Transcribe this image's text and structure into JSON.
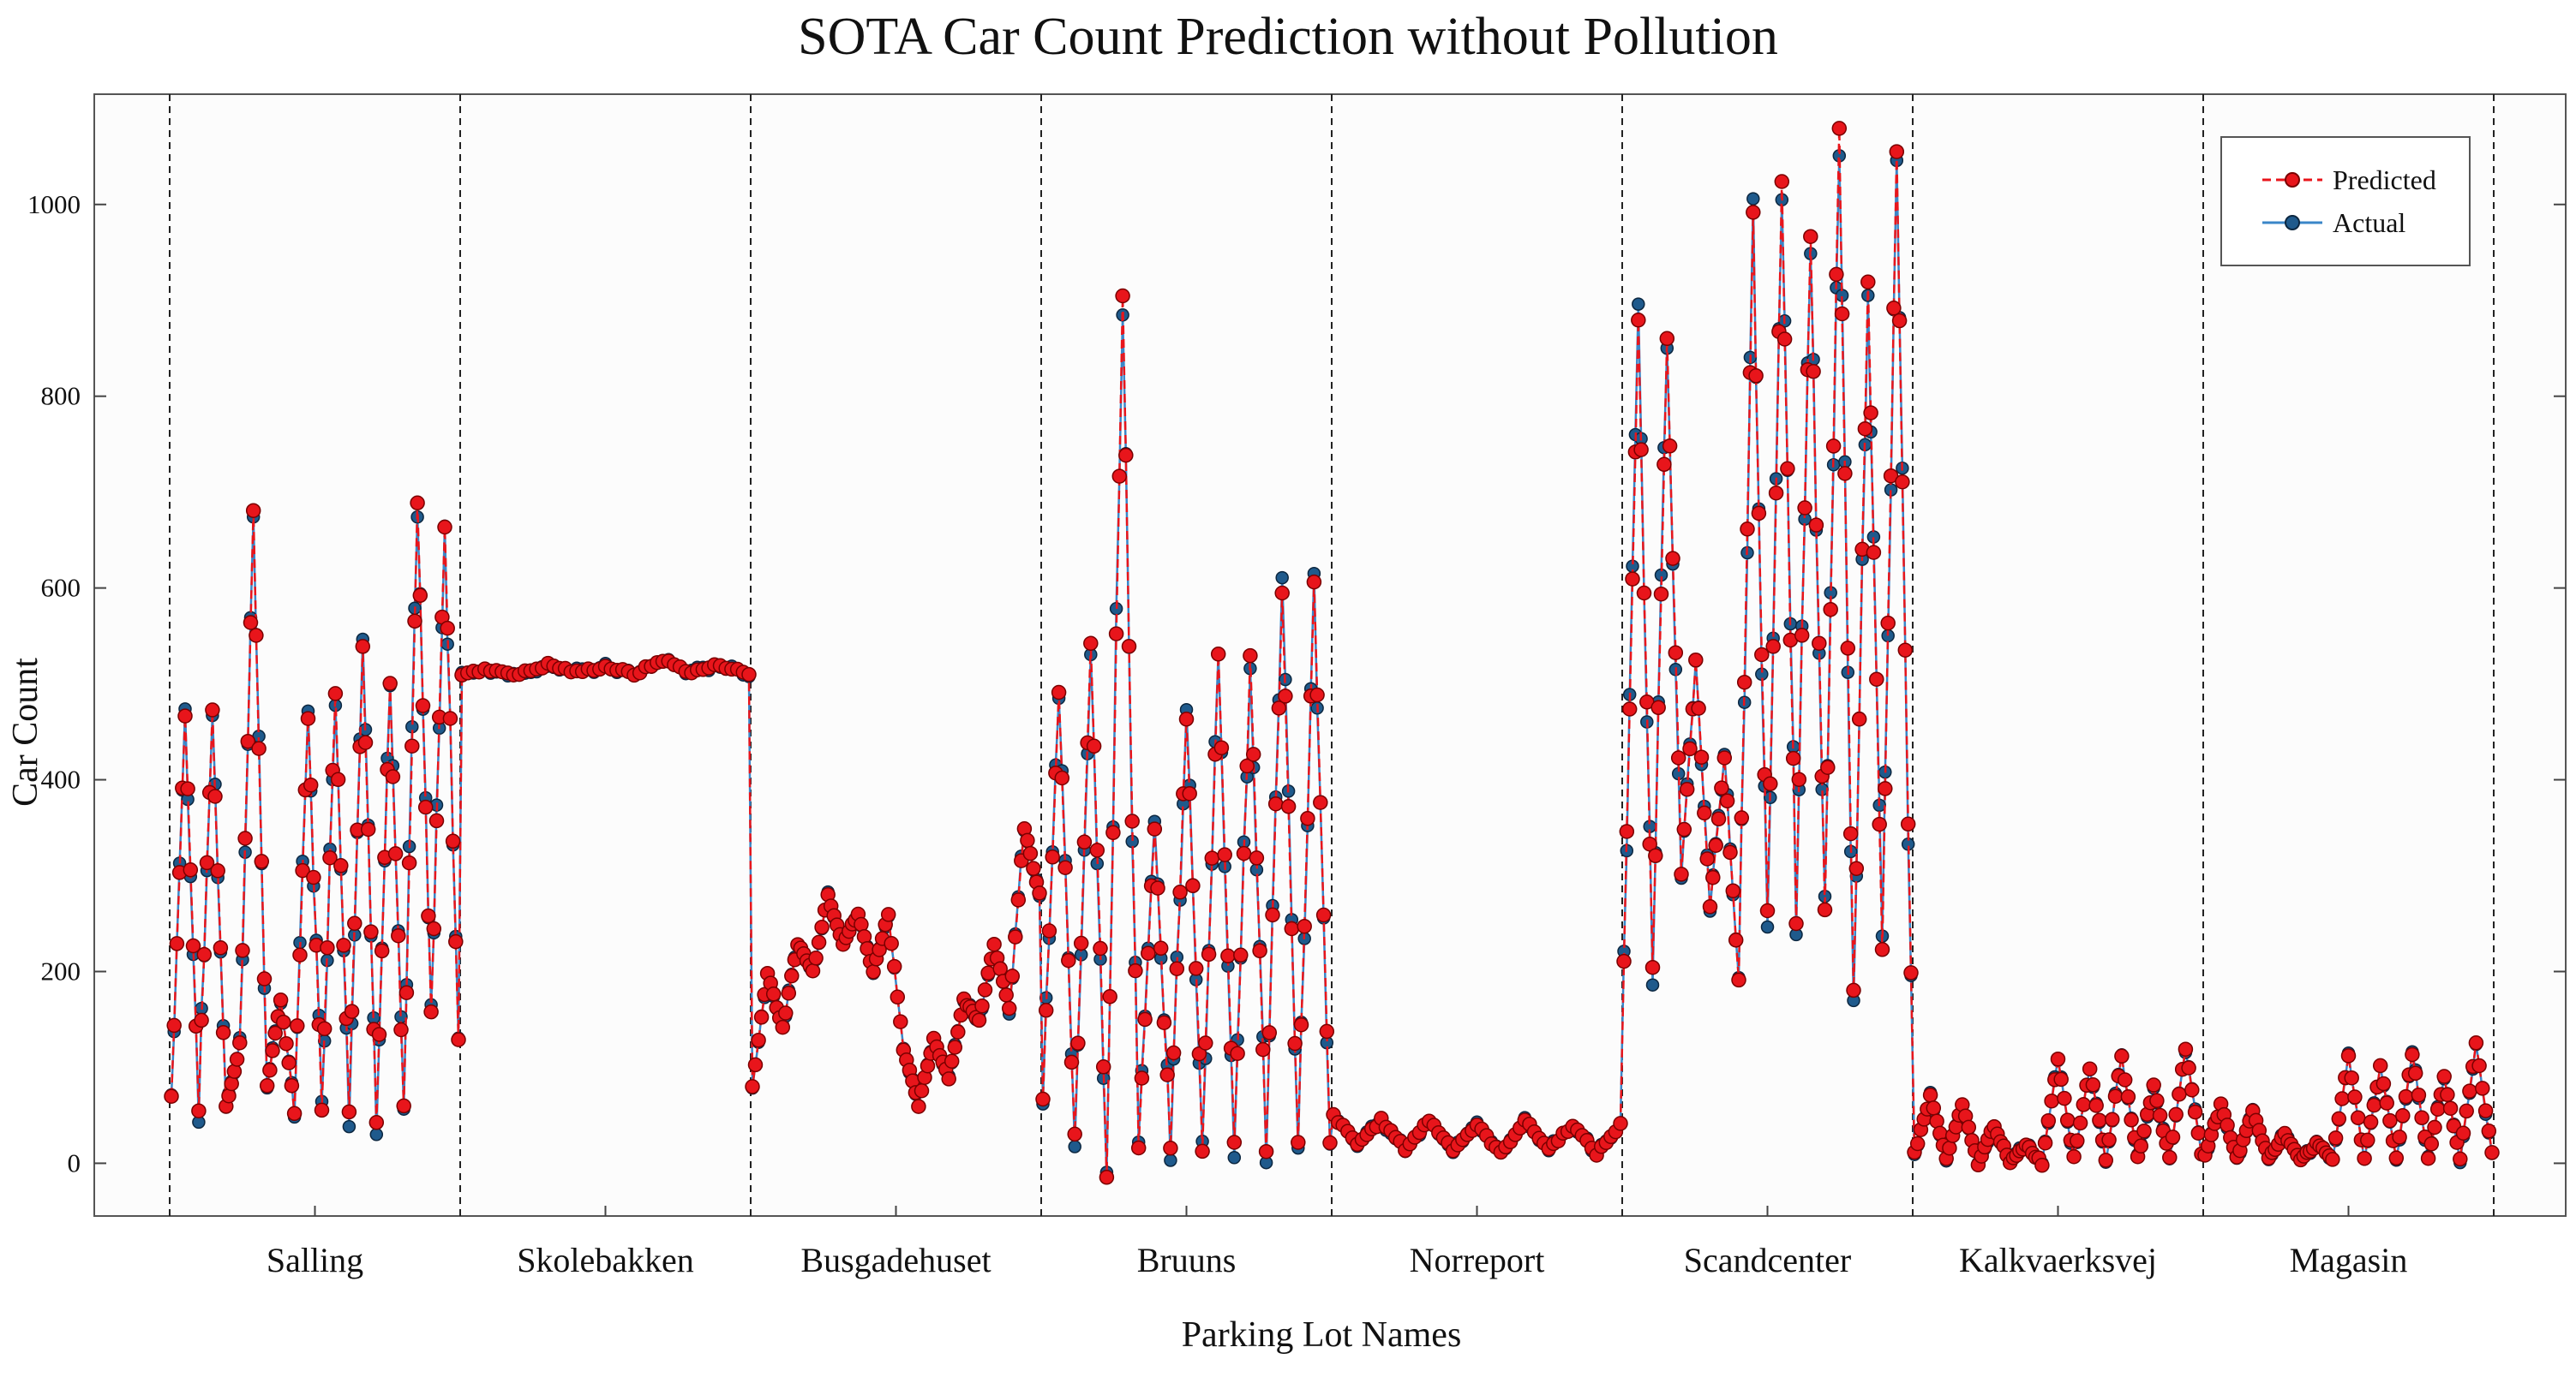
{
  "chart_data": {
    "type": "line",
    "title": "SOTA Car Count Prediction without Pollution",
    "xlabel": "Parking Lot Names",
    "ylabel": "Car Count",
    "ylim": [
      -55,
      1115
    ],
    "yticks": [
      0,
      200,
      400,
      600,
      800,
      1000
    ],
    "categories": [
      "Salling",
      "Skolebakken",
      "Busgadehuset",
      "Bruuns",
      "Norreport",
      "Scandcenter",
      "Kalkvaerksvej",
      "Magasin"
    ],
    "legend_position": "top-right",
    "series": [
      {
        "name": "Predicted",
        "color": "#e8151b",
        "style": "dashed line with circle markers",
        "approx_values": {
          "Salling": [
            70,
            470,
            60,
            470,
            60,
            120,
            670,
            80,
            170,
            60,
            470,
            60,
            490,
            60,
            540,
            50,
            500,
            50,
            690,
            150,
            670,
            130
          ],
          "Skolebakken": [
            510,
            515,
            510,
            520,
            512,
            518,
            510,
            525,
            512,
            520,
            510
          ],
          "Busgadehuset": [
            80,
            200,
            140,
            230,
            200,
            280,
            230,
            260,
            200,
            260,
            120,
            60,
            130,
            90,
            170,
            150,
            230,
            160,
            350,
            280
          ],
          "Bruuns": [
            70,
            490,
            20,
            550,
            0,
            900,
            20,
            350,
            20,
            470,
            20,
            530,
            20,
            520,
            20,
            600,
            20,
            600,
            20
          ],
          "Norreport": [
            50,
            20,
            45,
            15,
            45,
            15,
            40,
            10,
            45,
            15,
            40,
            10,
            40
          ],
          "Scandcenter": [
            220,
            870,
            200,
            870,
            300,
            520,
            270,
            420,
            190,
            980,
            250,
            1010,
            260,
            960,
            250,
            1080,
            170,
            930,
            220,
            1040,
            200
          ],
          "Kalkvaerksvej": [
            10,
            70,
            5,
            60,
            0,
            40,
            0,
            20,
            0,
            110,
            5,
            100,
            5,
            110,
            5,
            80,
            5,
            120,
            10
          ],
          "Magasin": [
            10,
            60,
            5,
            55,
            5,
            30,
            5,
            20,
            5,
            110,
            5,
            100,
            5,
            115,
            5,
            90,
            5,
            125,
            10
          ]
        }
      },
      {
        "name": "Actual",
        "color": "#1f5a8c",
        "style": "solid line with circle markers",
        "approx_values": "closely tracks Predicted; notable peaks: Bruuns ~920, Scandcenter ~1040"
      }
    ]
  }
}
